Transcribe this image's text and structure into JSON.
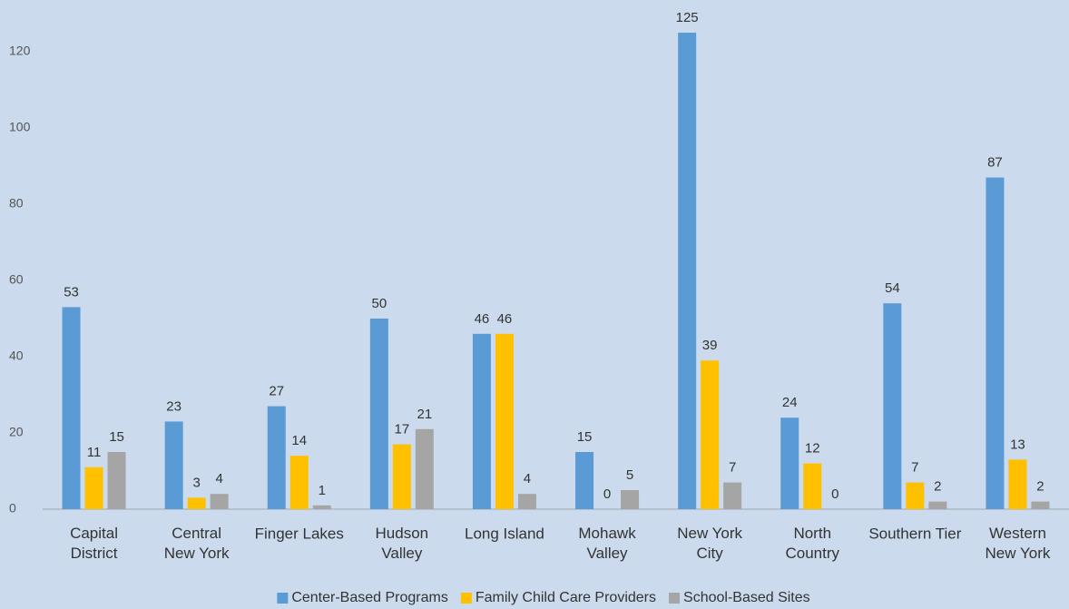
{
  "chart_data": {
    "type": "bar",
    "categories": [
      "Capital\nDistrict",
      "Central\nNew York",
      "Finger Lakes",
      "Hudson\nValley",
      "Long Island",
      "Mohawk\nValley",
      "New York\nCity",
      "North\nCountry",
      "Southern Tier",
      "Western\nNew York"
    ],
    "series": [
      {
        "name": "Center-Based Programs",
        "color": "#5b9bd5",
        "values": [
          53,
          23,
          27,
          50,
          46,
          15,
          125,
          24,
          54,
          87
        ]
      },
      {
        "name": "Family Child Care Providers",
        "color": "#ffc000",
        "values": [
          11,
          3,
          14,
          17,
          46,
          0,
          39,
          12,
          7,
          13
        ]
      },
      {
        "name": "School-Based Sites",
        "color": "#a5a5a5",
        "values": [
          15,
          4,
          1,
          21,
          4,
          5,
          7,
          0,
          2,
          2
        ]
      }
    ],
    "ylim": [
      0,
      130
    ],
    "yticks": [
      0,
      20,
      40,
      60,
      80,
      100,
      120
    ],
    "grid": false,
    "legend": "bottom"
  }
}
